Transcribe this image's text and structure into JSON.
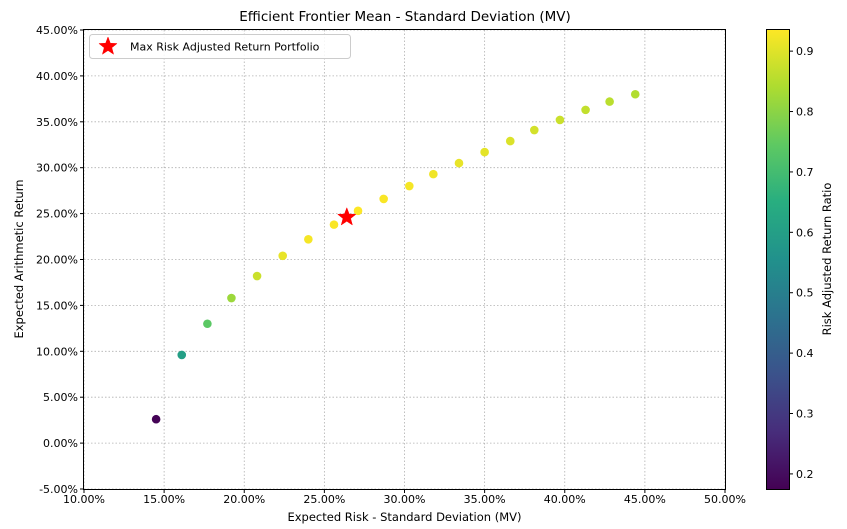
{
  "chart_data": {
    "type": "scatter",
    "title": "Efficient Frontier Mean - Standard Deviation (MV)",
    "xlabel": "Expected Risk - Standard Deviation (MV)",
    "ylabel": "Expected Arithmetic Return",
    "xlim": [
      0.1,
      0.5
    ],
    "ylim": [
      -0.05,
      0.45
    ],
    "x_tick_labels": [
      "10.00%",
      "15.00%",
      "20.00%",
      "25.00%",
      "30.00%",
      "35.00%",
      "40.00%",
      "45.00%",
      "50.00%"
    ],
    "y_tick_labels": [
      "-5.00%",
      "0.00%",
      "5.00%",
      "10.00%",
      "15.00%",
      "20.00%",
      "25.00%",
      "30.00%",
      "35.00%",
      "40.00%",
      "45.00%"
    ],
    "grid": true,
    "grid_style": "dotted",
    "colormap": "viridis",
    "colorbar": {
      "label": "Risk Adjusted Return Ratio",
      "range": [
        0.175,
        0.935
      ],
      "tick_labels": [
        "0.2",
        "0.3",
        "0.4",
        "0.5",
        "0.6",
        "0.7",
        "0.8",
        "0.9"
      ]
    },
    "series": [
      {
        "points": [
          {
            "x": 0.145,
            "y": 0.026,
            "ratio": 0.18
          },
          {
            "x": 0.161,
            "y": 0.096,
            "ratio": 0.6
          },
          {
            "x": 0.177,
            "y": 0.13,
            "ratio": 0.74
          },
          {
            "x": 0.192,
            "y": 0.158,
            "ratio": 0.82
          },
          {
            "x": 0.208,
            "y": 0.182,
            "ratio": 0.875
          },
          {
            "x": 0.224,
            "y": 0.204,
            "ratio": 0.91
          },
          {
            "x": 0.24,
            "y": 0.222,
            "ratio": 0.925
          },
          {
            "x": 0.256,
            "y": 0.238,
            "ratio": 0.93
          },
          {
            "x": 0.271,
            "y": 0.253,
            "ratio": 0.935
          },
          {
            "x": 0.287,
            "y": 0.266,
            "ratio": 0.93
          },
          {
            "x": 0.303,
            "y": 0.28,
            "ratio": 0.925
          },
          {
            "x": 0.318,
            "y": 0.293,
            "ratio": 0.92
          },
          {
            "x": 0.334,
            "y": 0.305,
            "ratio": 0.91
          },
          {
            "x": 0.35,
            "y": 0.317,
            "ratio": 0.905
          },
          {
            "x": 0.366,
            "y": 0.329,
            "ratio": 0.895
          },
          {
            "x": 0.381,
            "y": 0.341,
            "ratio": 0.885
          },
          {
            "x": 0.397,
            "y": 0.352,
            "ratio": 0.875
          },
          {
            "x": 0.413,
            "y": 0.363,
            "ratio": 0.865
          },
          {
            "x": 0.428,
            "y": 0.372,
            "ratio": 0.855
          },
          {
            "x": 0.444,
            "y": 0.38,
            "ratio": 0.845
          }
        ]
      },
      {
        "name": "Max Risk Adjusted Return Portfolio",
        "marker": "star",
        "color": "#ff0000",
        "points": [
          {
            "x": 0.264,
            "y": 0.246
          }
        ]
      }
    ],
    "legend": {
      "position": "top-left",
      "entries": [
        "Max Risk Adjusted Return Portfolio"
      ]
    }
  }
}
